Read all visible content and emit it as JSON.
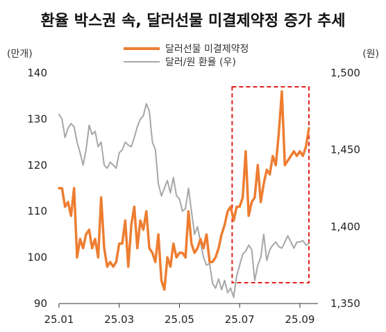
{
  "chart_data": {
    "type": "line",
    "title": "환율 박스권 속, 달러선물 미결제약정 증가 추세",
    "left_unit": "(만개)",
    "right_unit": "(원)",
    "x_ticks": [
      "25.01",
      "25.03",
      "25.05",
      "25.07",
      "25.09"
    ],
    "left_axis": {
      "ylim": [
        90,
        140
      ],
      "ticks": [
        "90",
        "100",
        "110",
        "120",
        "130",
        "140"
      ]
    },
    "right_axis": {
      "ylim": [
        1350,
        1500
      ],
      "ticks": [
        "1,350",
        "1,400",
        "1,450",
        "1,500"
      ]
    },
    "highlight": {
      "from": "25.07",
      "to": "25.09",
      "style": "red dashed box"
    },
    "legend_placement": "top-center",
    "colors": {
      "futures": "#ed7d31",
      "fx": "#a6a6a6",
      "highlight": "#e0201b"
    },
    "series": [
      {
        "name": "달러선물 미결제약정",
        "axis": "left",
        "x": [
          1.0,
          1.1,
          1.2,
          1.3,
          1.4,
          1.5,
          1.6,
          1.7,
          1.8,
          1.9,
          2.0,
          2.1,
          2.2,
          2.3,
          2.4,
          2.5,
          2.6,
          2.7,
          2.8,
          2.9,
          3.0,
          3.1,
          3.2,
          3.3,
          3.4,
          3.5,
          3.6,
          3.7,
          3.8,
          3.9,
          4.0,
          4.1,
          4.2,
          4.3,
          4.4,
          4.5,
          4.6,
          4.7,
          4.8,
          4.9,
          5.0,
          5.1,
          5.2,
          5.3,
          5.4,
          5.5,
          5.6,
          5.7,
          5.8,
          5.9,
          6.0,
          6.1,
          6.2,
          6.3,
          6.4,
          6.5,
          6.6,
          6.7,
          6.8,
          6.9,
          7.0,
          7.1,
          7.2,
          7.3,
          7.4,
          7.5,
          7.6,
          7.7,
          7.8,
          7.9,
          8.0,
          8.1,
          8.2,
          8.3,
          8.4,
          8.5,
          8.6,
          8.7,
          8.8,
          8.9,
          9.0,
          9.1,
          9.2,
          9.3
        ],
        "values": [
          115,
          115,
          111,
          112,
          109,
          115,
          100,
          104,
          102,
          105,
          106,
          102,
          104,
          100,
          113,
          102,
          98,
          99,
          98,
          99,
          103,
          103,
          108,
          98,
          107,
          111,
          102,
          108,
          106,
          110,
          102,
          101,
          99,
          105,
          95,
          93,
          100,
          98,
          103,
          100,
          101,
          101,
          100,
          110,
          103,
          101,
          102,
          104,
          102,
          105,
          99,
          99,
          100,
          102,
          105,
          107,
          110,
          111,
          108,
          111,
          111,
          113,
          123,
          109,
          112,
          113,
          120,
          112,
          116,
          119,
          118,
          122,
          120,
          127,
          136,
          120,
          121,
          122,
          123,
          122,
          123,
          122,
          124,
          128
        ]
      },
      {
        "name": "달러/원 환율 (우)",
        "axis": "right",
        "x": [
          1.0,
          1.1,
          1.2,
          1.3,
          1.4,
          1.5,
          1.6,
          1.7,
          1.8,
          1.9,
          2.0,
          2.1,
          2.2,
          2.3,
          2.4,
          2.5,
          2.6,
          2.7,
          2.8,
          2.9,
          3.0,
          3.1,
          3.2,
          3.3,
          3.4,
          3.5,
          3.6,
          3.7,
          3.8,
          3.9,
          4.0,
          4.1,
          4.2,
          4.3,
          4.4,
          4.5,
          4.6,
          4.7,
          4.8,
          4.9,
          5.0,
          5.1,
          5.2,
          5.3,
          5.4,
          5.5,
          5.6,
          5.7,
          5.8,
          5.9,
          6.0,
          6.1,
          6.2,
          6.3,
          6.4,
          6.5,
          6.6,
          6.7,
          6.8,
          6.9,
          7.0,
          7.1,
          7.2,
          7.3,
          7.4,
          7.5,
          7.6,
          7.7,
          7.8,
          7.9,
          8.0,
          8.1,
          8.2,
          8.3,
          8.4,
          8.5,
          8.6,
          8.7,
          8.8,
          8.9,
          9.0,
          9.1,
          9.2,
          9.3
        ],
        "values": [
          1473,
          1470,
          1458,
          1464,
          1467,
          1465,
          1455,
          1448,
          1440,
          1450,
          1466,
          1460,
          1462,
          1452,
          1455,
          1440,
          1438,
          1442,
          1440,
          1438,
          1448,
          1450,
          1455,
          1453,
          1452,
          1458,
          1465,
          1470,
          1472,
          1480,
          1475,
          1455,
          1450,
          1428,
          1420,
          1425,
          1430,
          1422,
          1432,
          1420,
          1418,
          1410,
          1412,
          1425,
          1410,
          1395,
          1400,
          1390,
          1380,
          1375,
          1376,
          1363,
          1360,
          1366,
          1359,
          1365,
          1357,
          1360,
          1354,
          1368,
          1375,
          1382,
          1384,
          1388,
          1385,
          1365,
          1375,
          1380,
          1395,
          1378,
          1385,
          1388,
          1390,
          1387,
          1386,
          1390,
          1394,
          1390,
          1386,
          1390,
          1390,
          1391,
          1388,
          1389
        ]
      }
    ]
  }
}
